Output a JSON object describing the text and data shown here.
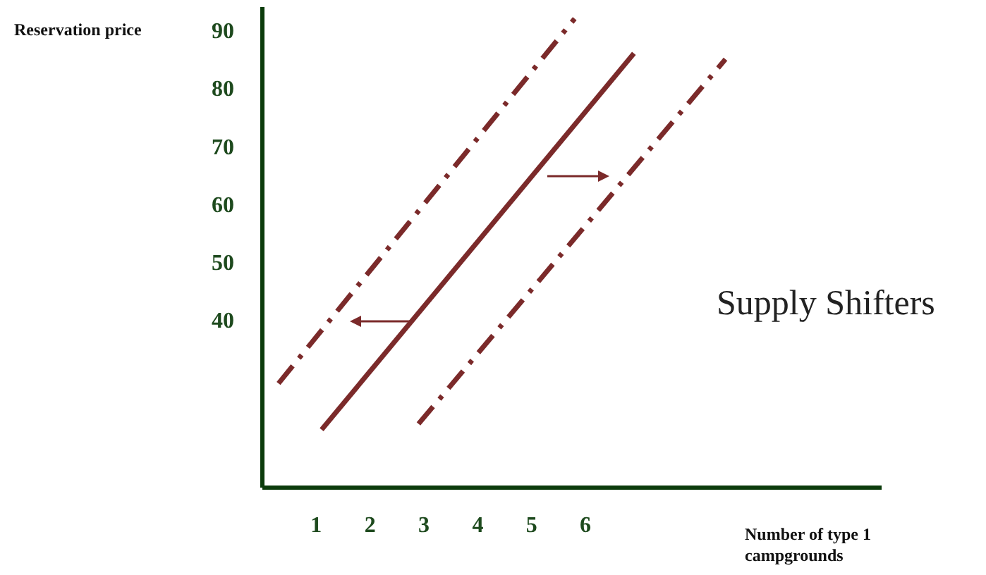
{
  "chart_data": {
    "type": "line",
    "xlabel": "Number of type 1 campgrounds",
    "ylabel": "Reservation price",
    "xlim": [
      0,
      11.5
    ],
    "ylim": [
      11,
      94
    ],
    "xticks": [
      1,
      2,
      3,
      4,
      5,
      6
    ],
    "yticks": [
      40,
      50,
      60,
      70,
      80,
      90
    ],
    "marker": "none",
    "series": [
      {
        "color": "#7b2a2a",
        "line_style": "dashed",
        "x": [
          0.3,
          5.8
        ],
        "values": [
          29,
          92
        ]
      },
      {
        "color": "#7b2a2a",
        "line_style": "solid",
        "x": [
          1.1,
          6.9
        ],
        "values": [
          21,
          86
        ]
      },
      {
        "color": "#7b2a2a",
        "line_style": "dashed",
        "x": [
          2.9,
          8.6
        ],
        "values": [
          22,
          85
        ]
      }
    ],
    "annotations": [
      "Supply Shifters"
    ]
  }
}
